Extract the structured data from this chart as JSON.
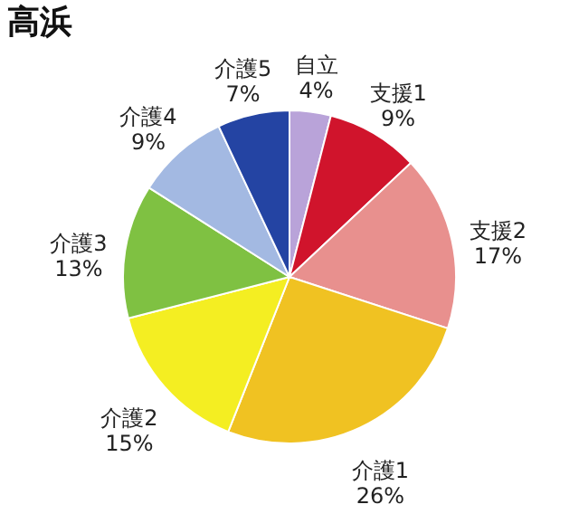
{
  "chart_data": {
    "type": "pie",
    "title": "高浜",
    "categories": [
      "自立",
      "支援1",
      "支援2",
      "介護1",
      "介護2",
      "介護3",
      "介護4",
      "介護5"
    ],
    "values": [
      4,
      9,
      17,
      26,
      15,
      13,
      9,
      7
    ],
    "value_labels": [
      "4%",
      "9%",
      "17%",
      "26%",
      "15%",
      "13%",
      "9%",
      "7%"
    ],
    "colors": [
      "#b9a3d9",
      "#d0142c",
      "#e8908e",
      "#f0c222",
      "#f4ee22",
      "#7fc142",
      "#a3b9e2",
      "#2444a3"
    ],
    "legend": false
  }
}
